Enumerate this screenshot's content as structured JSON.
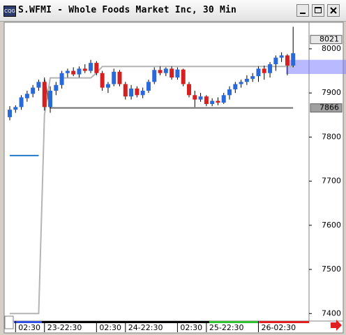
{
  "window": {
    "title": "S.WFMI - Whole Foods Market Inc, 30 Min"
  },
  "chart_data": {
    "type": "candlestick",
    "categories": [
      null,
      "02:30",
      null,
      null,
      null,
      null,
      "23-22:30",
      null,
      null,
      null,
      null,
      null,
      null,
      null,
      null,
      "02:30",
      null,
      null,
      null,
      null,
      "24-22:30",
      null,
      null,
      null,
      null,
      null,
      null,
      null,
      null,
      "02:30",
      null,
      null,
      null,
      null,
      "25-22:30",
      null,
      null,
      null,
      null,
      null,
      null,
      null,
      null,
      "26-02:30",
      null,
      null,
      null,
      null,
      null,
      null
    ],
    "open": [
      7845,
      7862,
      7868,
      7888,
      7898,
      7912,
      7925,
      7868,
      7905,
      7918,
      7945,
      7950,
      7942,
      7955,
      7950,
      7968,
      7945,
      7912,
      7920,
      7948,
      7920,
      7892,
      7910,
      7895,
      7905,
      7925,
      7952,
      7945,
      7955,
      7935,
      7953,
      7920,
      7895,
      7885,
      7892,
      7875,
      7882,
      7878,
      7895,
      7908,
      7920,
      7925,
      7932,
      7938,
      7955,
      7945,
      7965,
      7980,
      7985,
      7962
    ],
    "high": [
      7870,
      7872,
      7895,
      7905,
      7918,
      7930,
      7935,
      7915,
      7925,
      7950,
      7955,
      7958,
      7960,
      7965,
      7975,
      7972,
      7950,
      7925,
      7955,
      7952,
      7925,
      7918,
      7915,
      7912,
      7930,
      7958,
      7960,
      7958,
      7960,
      7958,
      7955,
      7925,
      7905,
      7900,
      7895,
      7888,
      7890,
      7900,
      7915,
      7925,
      7930,
      7940,
      7945,
      7960,
      7962,
      7970,
      7985,
      7992,
      7988,
      8050
    ],
    "low": [
      7838,
      7855,
      7862,
      7880,
      7890,
      7905,
      7860,
      7855,
      7895,
      7910,
      7935,
      7938,
      7935,
      7945,
      7945,
      7940,
      7905,
      7900,
      7915,
      7915,
      7885,
      7885,
      7890,
      7888,
      7900,
      7920,
      7940,
      7938,
      7930,
      7930,
      7915,
      7890,
      7868,
      7880,
      7870,
      7870,
      7872,
      7875,
      7885,
      7900,
      7912,
      7918,
      7925,
      7925,
      7930,
      7935,
      7950,
      7970,
      7940,
      7958
    ],
    "close": [
      7862,
      7868,
      7890,
      7898,
      7912,
      7925,
      7868,
      7905,
      7918,
      7945,
      7950,
      7942,
      7955,
      7950,
      7968,
      7945,
      7912,
      7920,
      7948,
      7920,
      7892,
      7910,
      7895,
      7905,
      7925,
      7952,
      7945,
      7955,
      7935,
      7953,
      7920,
      7895,
      7885,
      7892,
      7875,
      7882,
      7878,
      7895,
      7908,
      7920,
      7925,
      7932,
      7938,
      7955,
      7945,
      7965,
      7980,
      7985,
      7962,
      7990
    ],
    "up_color": "#2a6ad8",
    "down_color": "#d42020",
    "ylim": [
      7383,
      8060
    ],
    "yticks": [
      7400,
      7500,
      7600,
      7700,
      7800,
      7900,
      8000
    ],
    "lines": [
      {
        "color": "#b4b4b4",
        "values": [
          7400,
          7400,
          7400,
          7400,
          7400,
          7400,
          7850,
          7934,
          7934,
          7934,
          7934,
          7934,
          7934,
          7934,
          7934,
          7945,
          7960,
          7960,
          7960,
          7960,
          7960,
          7960,
          7960,
          7960,
          7960,
          7960,
          7960,
          7960,
          7960,
          7960,
          7960,
          7960,
          7960,
          7960,
          7960,
          7960,
          7960,
          7960,
          7960,
          7960,
          7960,
          7960,
          7960,
          7960,
          7960,
          7960,
          7960,
          7960,
          7960,
          7960
        ]
      },
      {
        "color": "#6e6e6e",
        "values": [
          null,
          null,
          null,
          null,
          null,
          null,
          7930,
          7866,
          7866,
          7866,
          7866,
          7866,
          7866,
          7866,
          7866,
          7866,
          7866,
          7866,
          7866,
          7866,
          7866,
          7866,
          7866,
          7866,
          7866,
          7866,
          7866,
          7866,
          7866,
          7866,
          7866,
          7866,
          7866,
          7866,
          7866,
          7866,
          7866,
          7866,
          7866,
          7866,
          7866,
          7866,
          7866,
          7866,
          7866,
          7866,
          7866,
          7866,
          7866,
          7866
        ]
      },
      {
        "color": "#1f78c8",
        "values": [
          7758,
          7758,
          7758,
          7758,
          7758,
          7758,
          null,
          null,
          null,
          null,
          null,
          null,
          null,
          null,
          null,
          null,
          null,
          null,
          null,
          null,
          null,
          null,
          null,
          null,
          null,
          null,
          null,
          null,
          null,
          null,
          null,
          null,
          null,
          null,
          null,
          null,
          null,
          null,
          null,
          null,
          null,
          null,
          null,
          null,
          null,
          null,
          null,
          null,
          null,
          null
        ]
      }
    ],
    "price_markers": [
      8021,
      7866
    ],
    "highlight_band": [
      7943,
      7975
    ]
  }
}
